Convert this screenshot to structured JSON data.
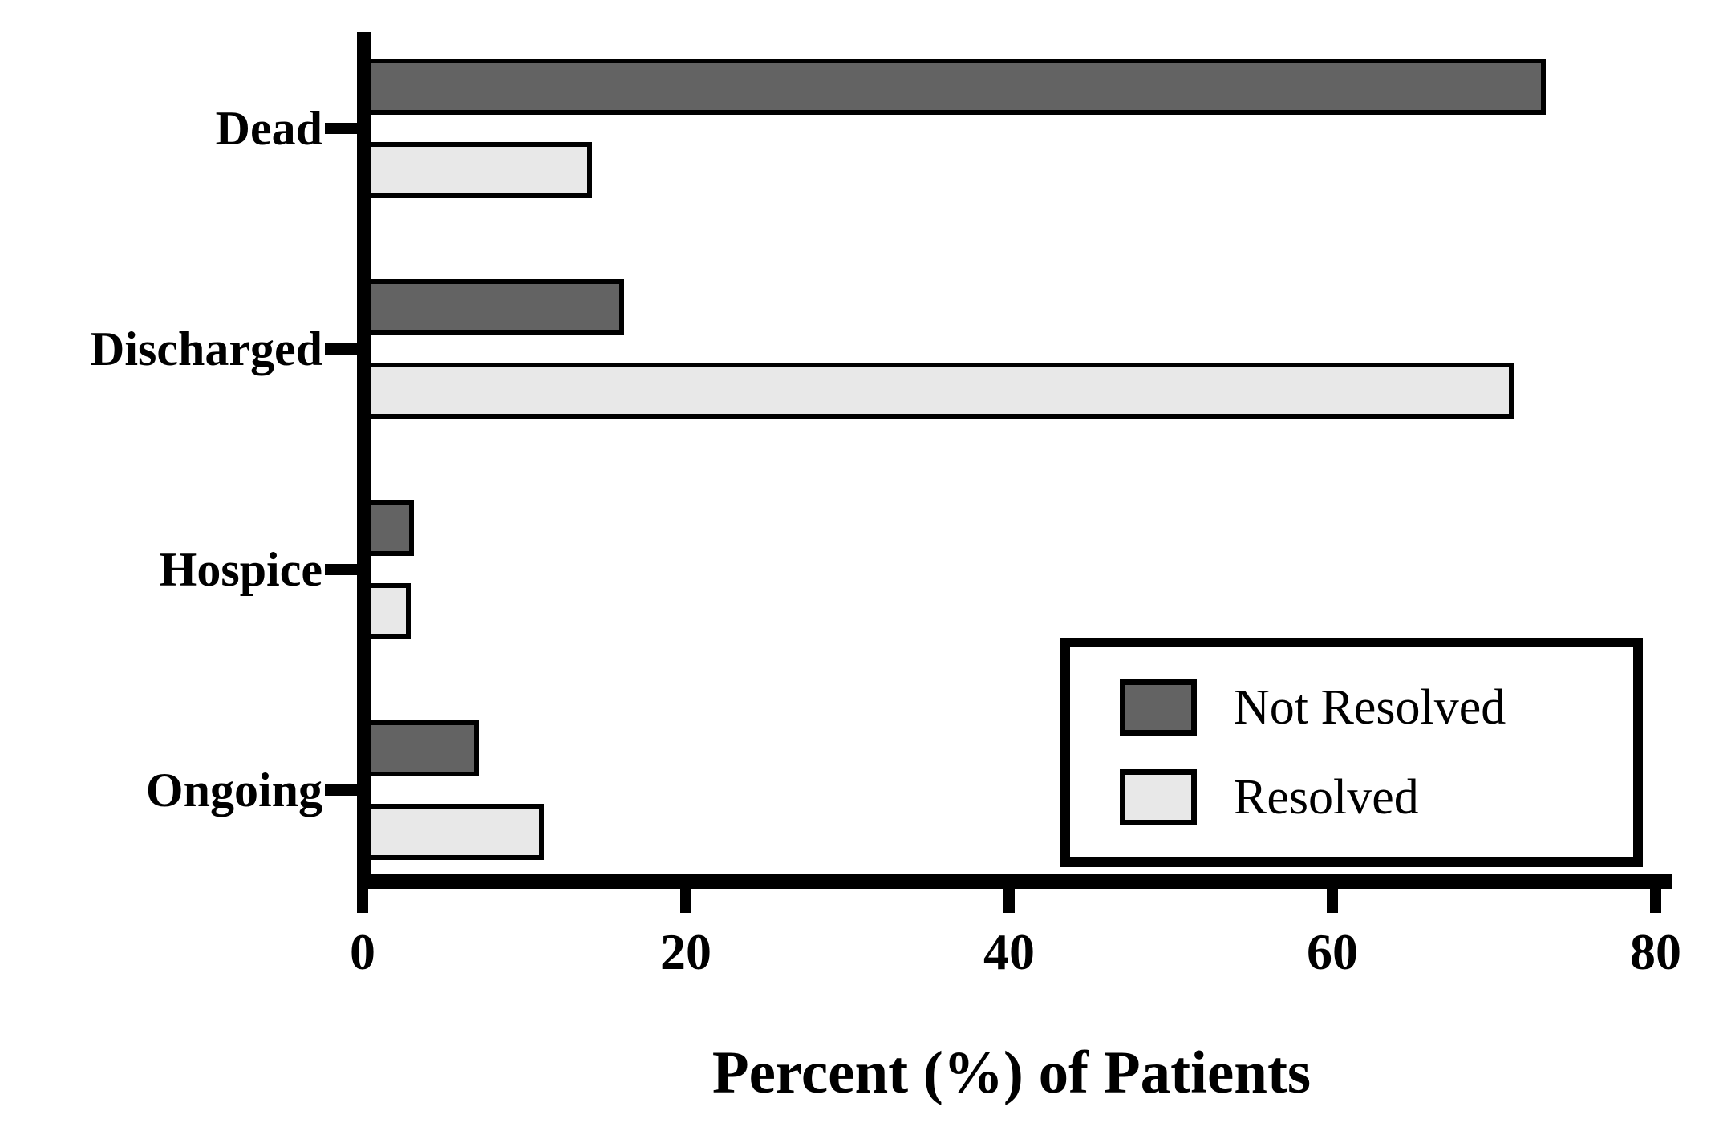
{
  "chart_data": {
    "type": "bar",
    "orientation": "horizontal",
    "title": "",
    "xlabel": "Percent (%) of Patients",
    "ylabel": "",
    "xlim": [
      0,
      80
    ],
    "x_ticks": [
      "0",
      "20",
      "40",
      "60",
      "80"
    ],
    "x_tick_values": [
      0,
      20,
      40,
      60,
      80
    ],
    "categories": [
      "Dead",
      "Discharged",
      "Hospice",
      "Ongoing"
    ],
    "series": [
      {
        "name": "Not Resolved",
        "color": "#636363",
        "values": [
          73,
          16,
          3,
          7
        ]
      },
      {
        "name": "Resolved",
        "color": "#e8e8e8",
        "values": [
          14,
          71,
          2.8,
          11
        ]
      }
    ],
    "legend_position": "bottom-right",
    "grid": false,
    "axis_color": "#000000",
    "background_color": "#ffffff"
  },
  "legend": {
    "items": [
      {
        "label": "Not Resolved",
        "color": "#636363"
      },
      {
        "label": "Resolved",
        "color": "#e8e8e8"
      }
    ]
  }
}
